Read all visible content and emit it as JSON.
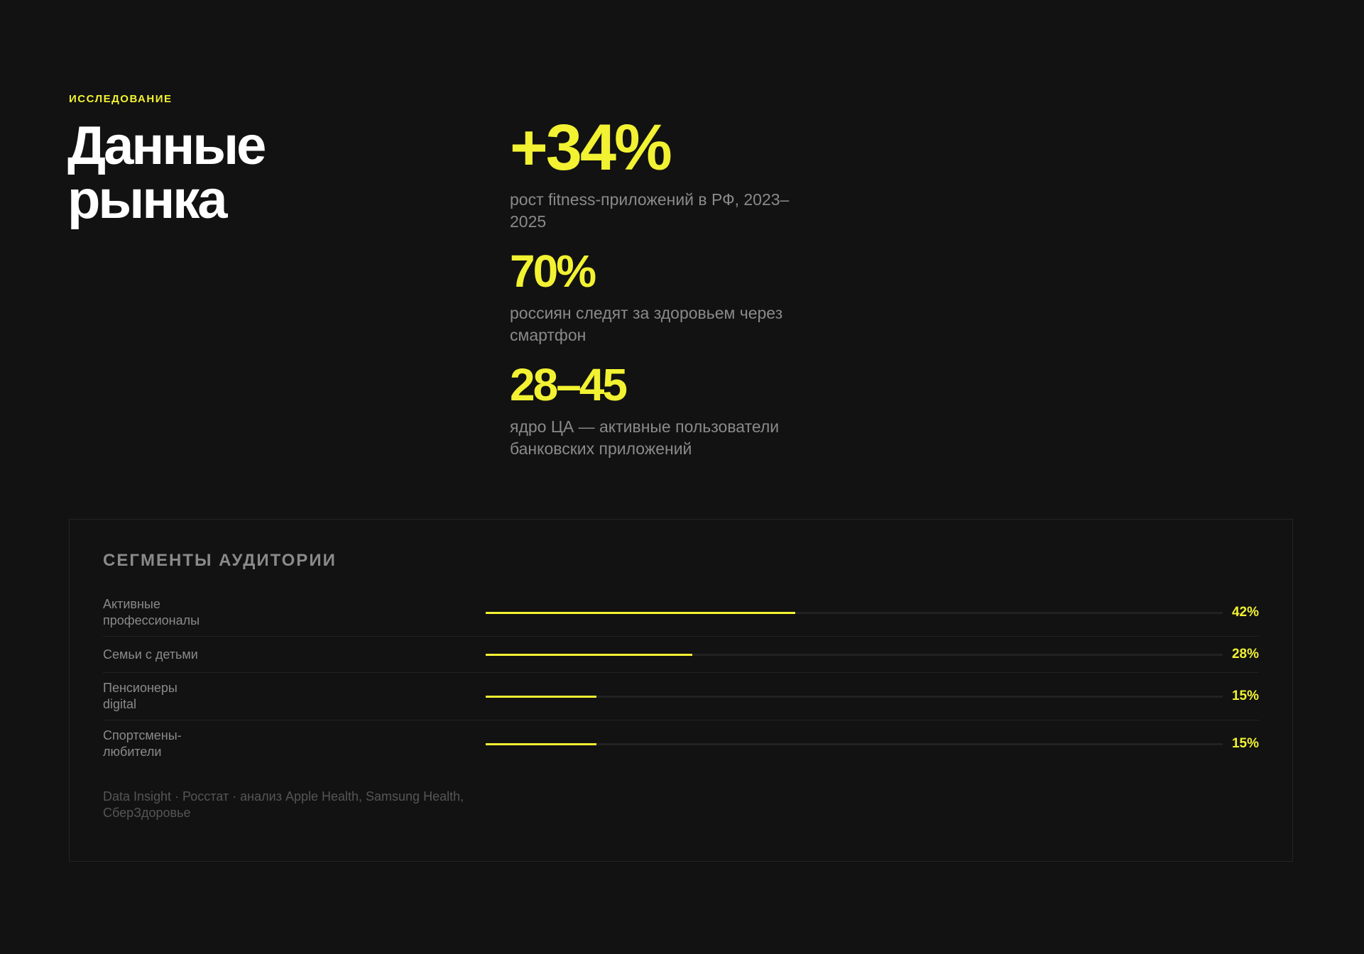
{
  "header": {
    "kicker": "ИССЛЕДОВАНИЕ",
    "title": "Данные рынка"
  },
  "stats": [
    {
      "value": "+34%",
      "caption": "рост fitness-приложений в РФ, 2023–2025"
    },
    {
      "value": "70%",
      "caption": "россиян следят за здоровьем через смартфон"
    },
    {
      "value": "28–45",
      "caption": "ядро ЦА — активные пользователи банковских приложений"
    }
  ],
  "chart_data": {
    "type": "bar",
    "orientation": "horizontal",
    "title": "СЕГМЕНТЫ АУДИТОРИИ",
    "categories": [
      "Активные профессионалы",
      "Семьи с детьми",
      "Пенсионеры digital",
      "Спортсмены-любители"
    ],
    "values": [
      42,
      28,
      15,
      15
    ],
    "value_labels": [
      "42%",
      "28%",
      "15%",
      "15%"
    ],
    "color": "#f2f232",
    "xlim": [
      0,
      100
    ],
    "source": "Data Insight · Росстат · анализ Apple Health, Samsung Health, СберЗдоровье"
  }
}
